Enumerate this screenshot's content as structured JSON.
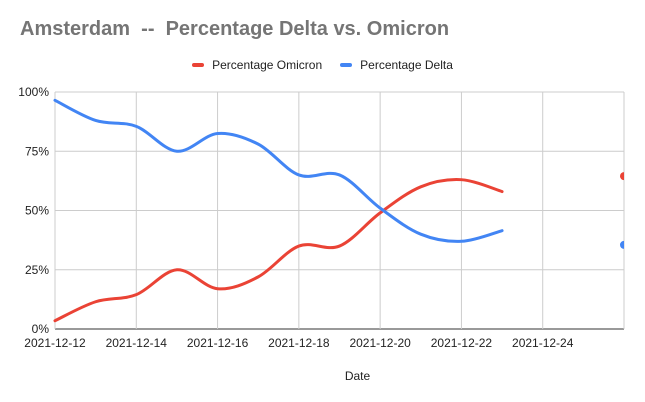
{
  "chart_data": {
    "type": "line",
    "title": "Amsterdam  --  Percentage Delta vs. Omicron",
    "xlabel": "Date",
    "ylabel": "",
    "x_tick_labels": [
      "2021-12-12",
      "2021-12-14",
      "2021-12-16",
      "2021-12-18",
      "2021-12-20",
      "2021-12-22",
      "2021-12-24"
    ],
    "y_tick_labels": [
      "0%",
      "25%",
      "50%",
      "75%",
      "100%"
    ],
    "ylim": [
      0,
      100
    ],
    "x_day_range": [
      0,
      14
    ],
    "x_tick_days": [
      0,
      2,
      4,
      6,
      8,
      10,
      12
    ],
    "series": [
      {
        "name": "Percentage Omicron",
        "color": "#ea4335",
        "days": [
          0,
          1,
          2,
          3,
          4,
          5,
          6,
          7,
          8,
          9,
          10,
          11
        ],
        "values": [
          3.5,
          11.5,
          14.5,
          25,
          17,
          22,
          35,
          35,
          49,
          60,
          63,
          58
        ],
        "extra_point": {
          "day": 14,
          "value": 64.5
        }
      },
      {
        "name": "Percentage Delta",
        "color": "#4285f4",
        "days": [
          0,
          1,
          2,
          3,
          4,
          5,
          6,
          7,
          8,
          9,
          10,
          11
        ],
        "values": [
          96.5,
          88,
          85.5,
          75,
          82.5,
          78,
          65,
          65,
          51,
          40,
          37,
          41.5
        ],
        "extra_point": {
          "day": 14,
          "value": 35.5
        }
      }
    ]
  }
}
